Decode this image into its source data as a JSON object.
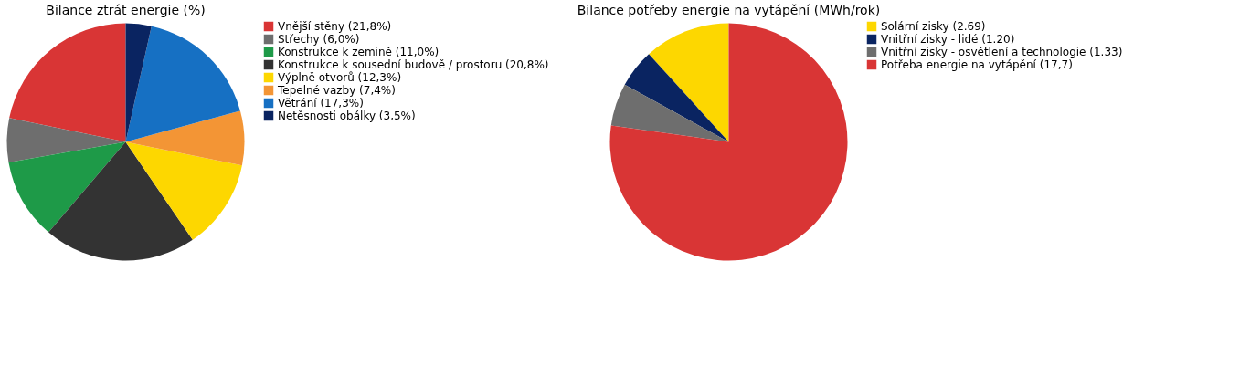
{
  "chart_data": [
    {
      "type": "pie",
      "title": "Bilance ztrát energie (%)",
      "legend": "right",
      "categories": [
        "Vnější stěny (21,8%)",
        "Střechy (6,0%)",
        "Konstrukce k zemině (11,0%)",
        "Konstrukce k sousední budově / prostoru (20,8%)",
        "Výplně otvorů (12,3%)",
        "Tepelné vazby (7,4%)",
        "Větrání (17,3%)",
        "Netěsnosti obálky (3,5%)"
      ],
      "values": [
        21.8,
        6.0,
        11.0,
        20.8,
        12.3,
        7.4,
        17.3,
        3.5
      ],
      "colors": [
        "#d93535",
        "#6e6e6e",
        "#1e9a48",
        "#333333",
        "#fdd700",
        "#f39535",
        "#1670c3",
        "#0a2461"
      ]
    },
    {
      "type": "pie",
      "title": "Bilance potřeby energie na vytápění (MWh/rok)",
      "legend": "right",
      "categories": [
        "Solární zisky (2.69)",
        "Vnitřní zisky - lidé (1.20)",
        "Vnitřní zisky - osvětlení a technologie (1.33)",
        "Potřeba energie na vytápění (17,7)"
      ],
      "values": [
        2.69,
        1.2,
        1.33,
        17.7
      ],
      "colors": [
        "#fdd700",
        "#0a2461",
        "#6e6e6e",
        "#d93535"
      ]
    }
  ]
}
